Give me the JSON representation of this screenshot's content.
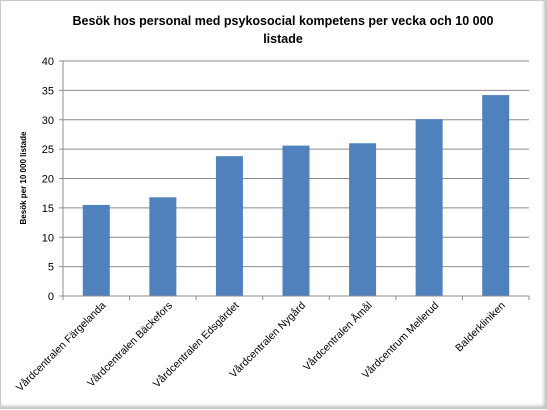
{
  "chart_data": {
    "type": "bar",
    "title_lines": [
      "Besök hos personal med psykosocial kompetens per vecka och 10 000",
      "listade"
    ],
    "ylabel": "Besök per 10 000 listade",
    "xlabel": "",
    "ylim": [
      0,
      40
    ],
    "yticks": [
      0,
      5,
      10,
      15,
      20,
      25,
      30,
      35,
      40
    ],
    "categories": [
      "Vårdcentralen Färgelanda",
      "Vårdcentralen Bäckefors",
      "Vårdcentralen Edsgärdet",
      "Vårdcentralen Nygård",
      "Vårdcentralen Åmål",
      "Vårdcentrum Mellerud",
      "Balderkliniken"
    ],
    "values": [
      15.5,
      16.8,
      23.8,
      25.6,
      26.0,
      30.1,
      34.2
    ],
    "grid": true,
    "legend": "none",
    "bar_color": "#4f81bd"
  }
}
